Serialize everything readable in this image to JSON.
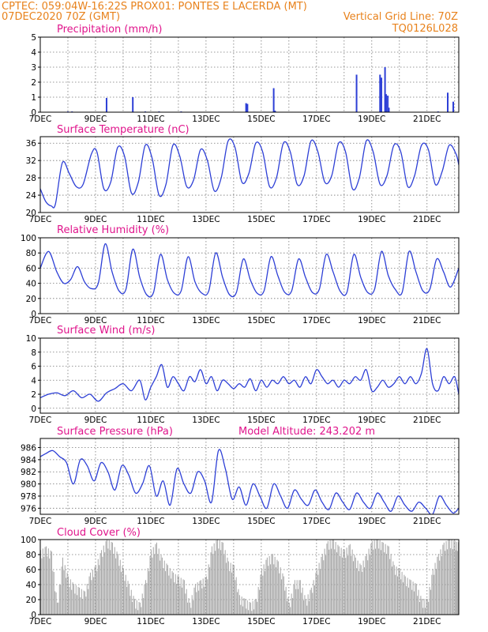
{
  "header": {
    "line1_left": "CPTEC:   059:04W-16:22S   PROX01: PONTES E LACERDA (MT)",
    "line2_left": "07DEC2020 70Z (GMT)",
    "line2_right": "Vertical Grid Line: 70Z",
    "line3_right": "TQ0126L028"
  },
  "chart_data": [
    {
      "id": "precip",
      "type": "bar",
      "title": "Precipitation (mm/h)",
      "color": "#2d3fd6",
      "ylim": [
        0,
        5
      ],
      "yticks": [
        0,
        1,
        2,
        3,
        4,
        5
      ],
      "xlim": [
        7,
        22.15
      ],
      "xticks": [
        "7DEC",
        "9DEC",
        "11DEC",
        "13DEC",
        "15DEC",
        "17DEC",
        "19DEC",
        "21DEC"
      ],
      "x": [
        8.0,
        8.15,
        9.4,
        10.35,
        10.8,
        11.3,
        12.1,
        14.45,
        14.5,
        15.45,
        15.5,
        18.45,
        19.3,
        19.35,
        19.48,
        19.52,
        19.58,
        19.62,
        21.4,
        21.75,
        21.95
      ],
      "values": [
        0.05,
        0.05,
        0.95,
        1.0,
        0.05,
        0.05,
        0.05,
        0.6,
        0.55,
        1.6,
        0.1,
        2.5,
        2.5,
        2.3,
        3.0,
        1.2,
        1.1,
        0.3,
        0.05,
        1.3,
        0.7
      ]
    },
    {
      "id": "temp",
      "type": "line",
      "title": "Surface Temperature (nC)",
      "color": "#2d3fd6",
      "ylim": [
        20,
        37.5
      ],
      "yticks": [
        20,
        24,
        28,
        32,
        36
      ],
      "xlim": [
        7,
        22.15
      ],
      "xticks": [
        "7DEC",
        "9DEC",
        "11DEC",
        "13DEC",
        "15DEC",
        "17DEC",
        "19DEC",
        "21DEC"
      ],
      "x": [
        7.0,
        7.2,
        7.4,
        7.55,
        7.8,
        8.05,
        8.3,
        8.55,
        8.85,
        9.05,
        9.3,
        9.55,
        9.8,
        10.05,
        10.3,
        10.55,
        10.8,
        11.05,
        11.3,
        11.55,
        11.8,
        12.05,
        12.3,
        12.55,
        12.8,
        13.05,
        13.3,
        13.55,
        13.8,
        14.05,
        14.3,
        14.55,
        14.8,
        15.05,
        15.3,
        15.55,
        15.8,
        16.05,
        16.3,
        16.55,
        16.8,
        17.05,
        17.3,
        17.55,
        17.8,
        18.05,
        18.3,
        18.55,
        18.8,
        19.05,
        19.3,
        19.55,
        19.8,
        20.05,
        20.3,
        20.55,
        20.8,
        21.05,
        21.3,
        21.55,
        21.8,
        22.05,
        22.15
      ],
      "values": [
        25.5,
        22.5,
        21.5,
        22.0,
        31.5,
        29.0,
        26.0,
        26.5,
        33.5,
        34.0,
        25.5,
        27.0,
        35.0,
        33.0,
        24.5,
        27.0,
        35.5,
        32.5,
        24.0,
        26.5,
        35.5,
        33.0,
        26.0,
        27.5,
        34.5,
        32.0,
        25.0,
        28.0,
        36.5,
        35.0,
        27.0,
        29.0,
        36.0,
        34.0,
        26.0,
        28.0,
        36.0,
        34.0,
        26.5,
        28.5,
        36.5,
        34.0,
        27.0,
        28.5,
        36.0,
        34.0,
        25.5,
        28.0,
        36.5,
        34.0,
        26.5,
        28.5,
        35.5,
        34.0,
        26.0,
        28.5,
        35.5,
        34.5,
        26.5,
        29.5,
        35.5,
        33.5,
        31.0
      ]
    },
    {
      "id": "rh",
      "type": "line",
      "title": "Relative Humidity (%)",
      "color": "#2d3fd6",
      "ylim": [
        0,
        100
      ],
      "yticks": [
        0,
        20,
        40,
        60,
        80,
        100
      ],
      "xlim": [
        7,
        22.15
      ],
      "xticks": [
        "7DEC",
        "9DEC",
        "11DEC",
        "13DEC",
        "15DEC",
        "17DEC",
        "19DEC",
        "21DEC"
      ],
      "x": [
        7.0,
        7.3,
        7.6,
        7.85,
        8.1,
        8.35,
        8.6,
        8.85,
        9.1,
        9.35,
        9.6,
        9.85,
        10.1,
        10.35,
        10.6,
        10.85,
        11.1,
        11.35,
        11.6,
        11.85,
        12.1,
        12.35,
        12.6,
        12.85,
        13.1,
        13.35,
        13.6,
        13.85,
        14.1,
        14.35,
        14.6,
        14.85,
        15.1,
        15.35,
        15.6,
        15.85,
        16.1,
        16.35,
        16.6,
        16.85,
        17.1,
        17.35,
        17.6,
        17.85,
        18.1,
        18.35,
        18.6,
        18.85,
        19.1,
        19.35,
        19.6,
        19.85,
        20.1,
        20.35,
        20.6,
        20.85,
        21.1,
        21.35,
        21.6,
        21.85,
        22.15
      ],
      "values": [
        60,
        82,
        55,
        40,
        45,
        62,
        42,
        33,
        40,
        92,
        55,
        30,
        32,
        85,
        48,
        25,
        28,
        78,
        45,
        27,
        30,
        75,
        42,
        27,
        30,
        80,
        48,
        25,
        28,
        72,
        45,
        27,
        30,
        75,
        50,
        28,
        30,
        72,
        48,
        28,
        32,
        78,
        55,
        30,
        28,
        78,
        48,
        28,
        32,
        82,
        50,
        32,
        28,
        82,
        55,
        30,
        32,
        72,
        55,
        35,
        60
      ]
    },
    {
      "id": "wind",
      "type": "line",
      "title": "Surface Wind (m/s)",
      "color": "#2d3fd6",
      "ylim": [
        -0.7,
        10
      ],
      "yticks": [
        0,
        2,
        4,
        6,
        8,
        10
      ],
      "xlim": [
        7,
        22.15
      ],
      "xticks": [
        "7DEC",
        "9DEC",
        "11DEC",
        "13DEC",
        "15DEC",
        "17DEC",
        "19DEC",
        "21DEC"
      ],
      "x": [
        7.0,
        7.3,
        7.6,
        7.9,
        8.2,
        8.5,
        8.8,
        9.1,
        9.4,
        9.7,
        10.0,
        10.3,
        10.6,
        10.8,
        11.0,
        11.2,
        11.4,
        11.6,
        11.8,
        12.0,
        12.2,
        12.4,
        12.6,
        12.8,
        13.0,
        13.2,
        13.4,
        13.6,
        13.8,
        14.0,
        14.2,
        14.4,
        14.6,
        14.8,
        15.0,
        15.2,
        15.4,
        15.6,
        15.8,
        16.0,
        16.2,
        16.4,
        16.6,
        16.8,
        17.0,
        17.2,
        17.4,
        17.6,
        17.8,
        18.0,
        18.2,
        18.4,
        18.6,
        18.8,
        19.0,
        19.2,
        19.4,
        19.6,
        19.8,
        20.0,
        20.2,
        20.4,
        20.6,
        20.8,
        21.0,
        21.2,
        21.4,
        21.6,
        21.8,
        22.0,
        22.15
      ],
      "values": [
        1.5,
        2.0,
        2.2,
        1.8,
        2.5,
        1.5,
        2.0,
        1.0,
        2.2,
        2.8,
        3.5,
        2.5,
        4.0,
        1.2,
        3.0,
        4.5,
        6.2,
        3.0,
        4.5,
        3.5,
        2.5,
        4.5,
        3.8,
        5.5,
        3.5,
        4.5,
        2.5,
        4.0,
        3.5,
        2.8,
        3.5,
        3.0,
        4.2,
        2.5,
        4.0,
        3.0,
        4.0,
        3.5,
        4.5,
        3.5,
        4.0,
        3.0,
        4.5,
        3.5,
        5.5,
        4.5,
        3.5,
        4.0,
        3.0,
        4.0,
        3.5,
        4.5,
        4.0,
        5.5,
        2.5,
        3.0,
        4.0,
        3.0,
        3.5,
        4.5,
        3.5,
        4.5,
        3.5,
        5.0,
        8.5,
        3.5,
        2.5,
        4.5,
        3.5,
        4.5,
        2.0
      ]
    },
    {
      "id": "pres",
      "type": "line",
      "title": "Surface Pressure (hPa)",
      "annotation": "Model Altitude: 243.202 m",
      "color": "#2d3fd6",
      "ylim": [
        975,
        987.5
      ],
      "yticks": [
        976,
        978,
        980,
        982,
        984,
        986
      ],
      "xlim": [
        7,
        22.15
      ],
      "xticks": [
        "7DEC",
        "9DEC",
        "11DEC",
        "13DEC",
        "15DEC",
        "17DEC",
        "19DEC",
        "21DEC"
      ],
      "x": [
        7.0,
        7.2,
        7.45,
        7.7,
        7.95,
        8.2,
        8.45,
        8.7,
        8.95,
        9.2,
        9.45,
        9.7,
        9.95,
        10.2,
        10.45,
        10.7,
        10.95,
        11.2,
        11.45,
        11.7,
        11.95,
        12.2,
        12.45,
        12.7,
        12.95,
        13.2,
        13.45,
        13.7,
        13.95,
        14.2,
        14.45,
        14.7,
        14.95,
        15.2,
        15.45,
        15.7,
        15.95,
        16.2,
        16.45,
        16.7,
        16.95,
        17.2,
        17.45,
        17.7,
        17.95,
        18.2,
        18.45,
        18.7,
        18.95,
        19.2,
        19.45,
        19.7,
        19.95,
        20.2,
        20.45,
        20.7,
        20.95,
        21.2,
        21.45,
        21.7,
        21.95,
        22.15
      ],
      "values": [
        984.5,
        985.0,
        985.5,
        984.5,
        983.5,
        980.0,
        984.0,
        983.0,
        980.5,
        983.5,
        982.0,
        979.0,
        983.0,
        981.5,
        978.5,
        980.0,
        983.0,
        978.0,
        980.5,
        976.5,
        982.5,
        980.0,
        978.5,
        982.0,
        980.5,
        977.0,
        985.5,
        982.5,
        977.5,
        979.5,
        976.5,
        980.0,
        978.0,
        976.0,
        980.0,
        978.0,
        976.0,
        979.0,
        977.5,
        976.5,
        979.0,
        977.0,
        975.8,
        978.5,
        977.0,
        975.8,
        978.5,
        977.0,
        976.0,
        978.5,
        977.0,
        975.5,
        978.0,
        976.5,
        975.5,
        977.0,
        976.0,
        975.0,
        978.0,
        976.5,
        975.2,
        976.0
      ]
    },
    {
      "id": "cloud",
      "type": "area",
      "title": "Cloud Cover (%)",
      "color": "#a6a6a6",
      "ylim": [
        0,
        100
      ],
      "yticks": [
        0,
        20,
        40,
        60,
        80,
        100
      ],
      "xlim": [
        7,
        22.15
      ],
      "xticks": [
        "7DEC",
        "9DEC",
        "11DEC",
        "13DEC",
        "15DEC",
        "17DEC",
        "19DEC",
        "21DEC"
      ],
      "x": [
        7.0,
        7.2,
        7.4,
        7.6,
        7.8,
        8.0,
        8.2,
        8.4,
        8.6,
        8.8,
        9.0,
        9.2,
        9.4,
        9.6,
        9.8,
        10.0,
        10.2,
        10.4,
        10.6,
        10.8,
        11.0,
        11.2,
        11.4,
        11.6,
        11.8,
        12.0,
        12.2,
        12.4,
        12.6,
        12.8,
        13.0,
        13.2,
        13.4,
        13.6,
        13.8,
        14.0,
        14.2,
        14.4,
        14.6,
        14.8,
        15.0,
        15.2,
        15.4,
        15.6,
        15.8,
        16.0,
        16.2,
        16.4,
        16.6,
        16.8,
        17.0,
        17.2,
        17.4,
        17.6,
        17.8,
        18.0,
        18.2,
        18.4,
        18.6,
        18.8,
        19.0,
        19.2,
        19.4,
        19.6,
        19.8,
        20.0,
        20.2,
        20.4,
        20.6,
        20.8,
        21.0,
        21.2,
        21.4,
        21.6,
        21.8,
        22.0,
        22.15
      ],
      "values": [
        80,
        85,
        78,
        10,
        70,
        45,
        35,
        30,
        25,
        50,
        60,
        80,
        95,
        90,
        75,
        55,
        35,
        15,
        10,
        40,
        80,
        90,
        70,
        60,
        50,
        45,
        40,
        10,
        35,
        40,
        45,
        85,
        95,
        90,
        65,
        60,
        20,
        15,
        10,
        15,
        55,
        70,
        75,
        65,
        45,
        10,
        40,
        40,
        15,
        30,
        55,
        75,
        92,
        95,
        85,
        80,
        88,
        70,
        60,
        75,
        92,
        95,
        90,
        85,
        60,
        55,
        45,
        40,
        35,
        15,
        15,
        55,
        75,
        90,
        95,
        92,
        90
      ]
    }
  ]
}
